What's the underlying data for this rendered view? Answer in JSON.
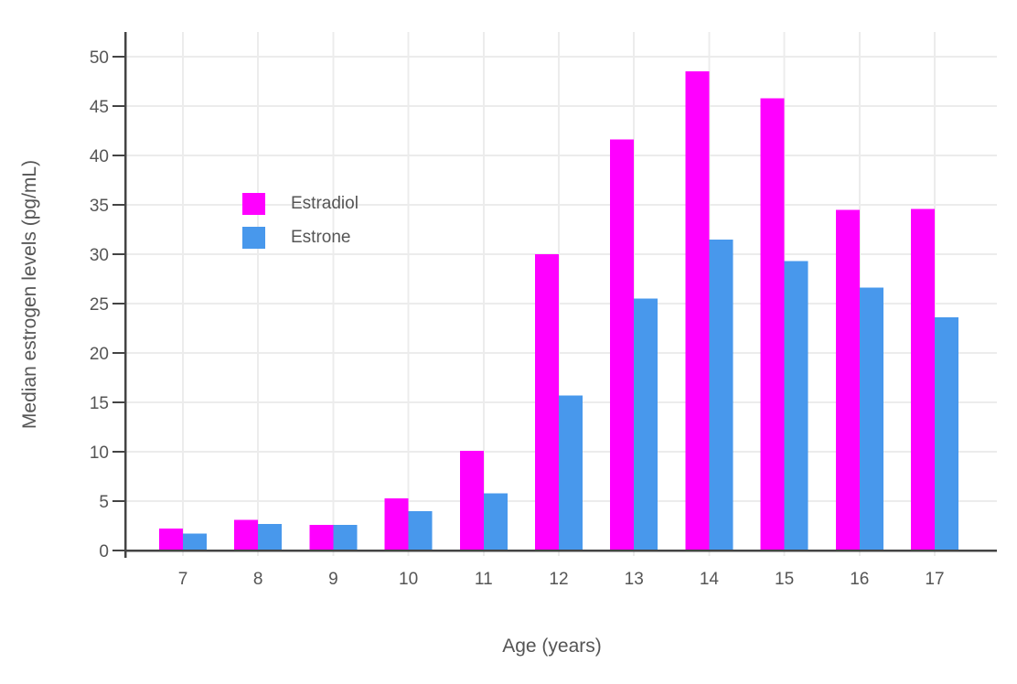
{
  "figure": {
    "background": "#FFFFFF",
    "text_color": "#555555",
    "axis_color": "#444444",
    "grid_color": "#ECECEC"
  },
  "chart_data": {
    "type": "bar",
    "title": "",
    "xlabel": "Age (years)",
    "ylabel": "Median estrogen levels (pg/mL)",
    "categories": [
      "7",
      "8",
      "9",
      "10",
      "11",
      "12",
      "13",
      "14",
      "15",
      "16",
      "17"
    ],
    "series": [
      {
        "name": "Estradiol",
        "color": "#FF00FF",
        "values": [
          2.2,
          3.1,
          2.6,
          5.3,
          10.1,
          30.0,
          41.6,
          48.5,
          45.8,
          34.5,
          34.6
        ]
      },
      {
        "name": "Estrone",
        "color": "#4898EC",
        "values": [
          1.7,
          2.7,
          2.6,
          4.0,
          5.8,
          15.7,
          25.5,
          31.5,
          29.3,
          26.6,
          23.6
        ]
      }
    ],
    "ylim": [
      0,
      52.5
    ],
    "yticks": [
      0,
      5,
      10,
      15,
      20,
      25,
      30,
      35,
      40,
      45,
      50
    ],
    "grid": true,
    "legend_position": "inside-top-left"
  }
}
